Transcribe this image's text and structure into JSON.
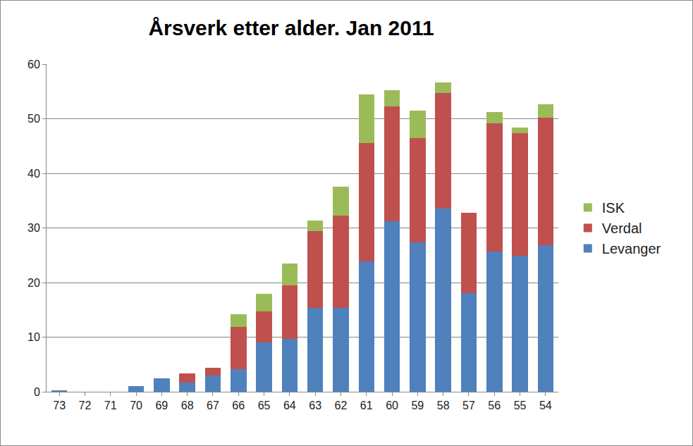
{
  "chart_data": {
    "type": "bar",
    "title": "Årsverk etter alder. Jan 2011",
    "categories": [
      "73",
      "72",
      "71",
      "70",
      "69",
      "68",
      "67",
      "66",
      "65",
      "64",
      "63",
      "62",
      "61",
      "60",
      "59",
      "58",
      "57",
      "56",
      "55",
      "54"
    ],
    "series": [
      {
        "name": "Levanger",
        "color": "#4f81bd",
        "values": [
          0.3,
          0,
          0,
          1.0,
          2.4,
          1.7,
          3.0,
          4.1,
          9.0,
          9.7,
          15.4,
          15.4,
          23.9,
          31.2,
          27.3,
          33.5,
          18.1,
          25.7,
          24.9,
          26.8
        ]
      },
      {
        "name": "Verdal",
        "color": "#c0504d",
        "values": [
          0,
          0,
          0,
          0,
          0,
          1.6,
          1.4,
          7.8,
          5.7,
          9.8,
          14.0,
          16.9,
          21.6,
          21.0,
          19.2,
          21.2,
          14.7,
          23.5,
          22.5,
          23.4
        ]
      },
      {
        "name": "ISK",
        "color": "#9bbb59",
        "values": [
          0,
          0,
          0,
          0,
          0,
          0,
          0,
          2.3,
          3.3,
          4.0,
          2.0,
          5.2,
          8.9,
          3.0,
          5.0,
          2.0,
          0,
          2.0,
          1.0,
          2.4
        ]
      }
    ],
    "stacked": true,
    "ylim": [
      0,
      60
    ],
    "yticks": [
      0,
      10,
      20,
      30,
      40,
      50,
      60
    ],
    "grid": true,
    "legend": "right"
  }
}
